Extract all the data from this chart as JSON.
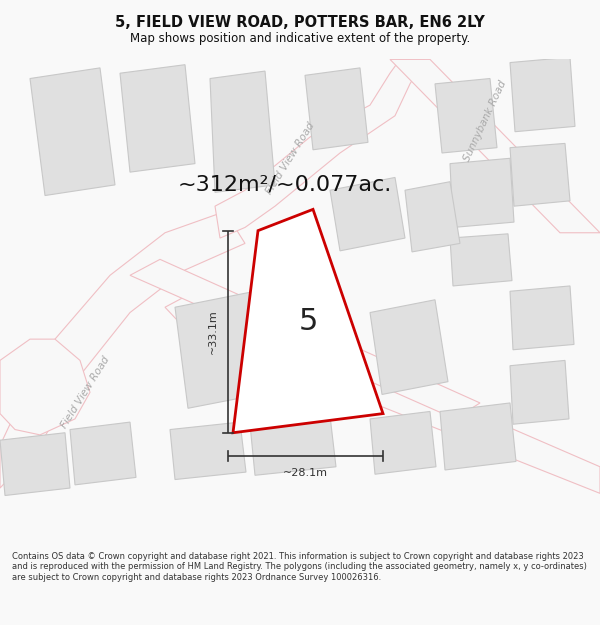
{
  "title": "5, FIELD VIEW ROAD, POTTERS BAR, EN6 2LY",
  "subtitle": "Map shows position and indicative extent of the property.",
  "area_text": "~312m²/~0.077ac.",
  "width_label": "~28.1m",
  "height_label": "~33.1m",
  "plot_number": "5",
  "footer": "Contains OS data © Crown copyright and database right 2021. This information is subject to Crown copyright and database rights 2023 and is reproduced with the permission of HM Land Registry. The polygons (including the associated geometry, namely x, y co-ordinates) are subject to Crown copyright and database rights 2023 Ordnance Survey 100026316.",
  "bg_color": "#f9f9f9",
  "map_bg": "#f7f7f7",
  "road_color": "#f0bfc4",
  "building_fill": "#e0e0e0",
  "building_stroke": "#c8c8c8",
  "plot_stroke": "#cc0000",
  "plot_fill": "#ffffff",
  "dim_line_color": "#333333",
  "road_label_color": "#bbbbbb",
  "fvr_label_color": "#aaaaaa",
  "area_text_color": "#111111",
  "plot_label_color": "#222222",
  "title_color": "#111111",
  "footer_color": "#333333",
  "title_fontsize": 10.5,
  "subtitle_fontsize": 8.5,
  "area_fontsize": 16,
  "plot_num_fontsize": 22,
  "dim_fontsize": 8,
  "road_label_fontsize": 7.5,
  "footer_fontsize": 6.0
}
